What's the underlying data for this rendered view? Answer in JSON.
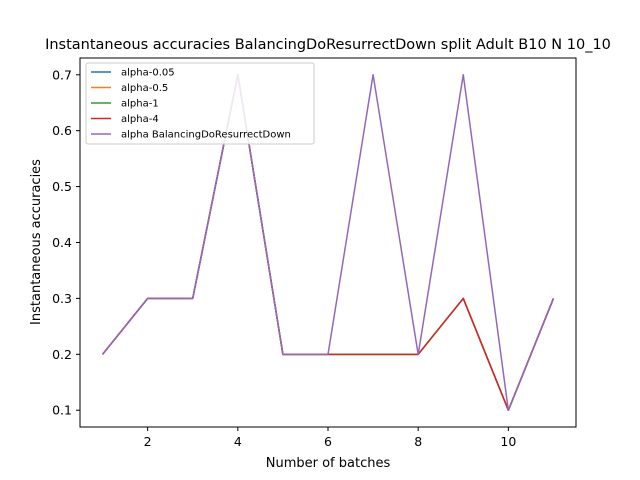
{
  "chart_data": {
    "type": "line",
    "title": "Instantaneous accuracies BalancingDoResurrectDown split Adult B10 N 10_10",
    "xlabel": "Number of batches",
    "ylabel": "Instantaneous accuracies",
    "xlim": [
      0.5,
      11.5
    ],
    "ylim": [
      0.07,
      0.73
    ],
    "xticks": [
      2,
      4,
      6,
      8,
      10
    ],
    "yticks": [
      0.1,
      0.2,
      0.3,
      0.4,
      0.5,
      0.6,
      0.7
    ],
    "grid": false,
    "legend_position": "upper-left",
    "x": [
      1,
      2,
      3,
      4,
      5,
      6,
      7,
      8,
      9,
      10,
      11
    ],
    "series": [
      {
        "name": "alpha-0.05",
        "color": "#1f77b4",
        "values": [
          0.2,
          0.3,
          0.3,
          0.7,
          0.2,
          0.2,
          0.2,
          0.2,
          0.3,
          0.1,
          0.3
        ]
      },
      {
        "name": "alpha-0.5",
        "color": "#ff7f0e",
        "values": [
          0.2,
          0.3,
          0.3,
          0.7,
          0.2,
          0.2,
          0.2,
          0.2,
          0.3,
          0.1,
          0.3
        ]
      },
      {
        "name": "alpha-1",
        "color": "#2ca02c",
        "values": [
          0.2,
          0.3,
          0.3,
          0.7,
          0.2,
          0.2,
          0.2,
          0.2,
          0.3,
          0.1,
          0.3
        ]
      },
      {
        "name": "alpha-4",
        "color": "#d62728",
        "values": [
          0.2,
          0.3,
          0.3,
          0.7,
          0.2,
          0.2,
          0.2,
          0.2,
          0.3,
          0.1,
          0.3
        ]
      },
      {
        "name": "alpha BalancingDoResurrectDown",
        "color": "#9467bd",
        "values": [
          0.2,
          0.3,
          0.3,
          0.7,
          0.2,
          0.2,
          0.7,
          0.2,
          0.7,
          0.1,
          0.3
        ]
      }
    ]
  }
}
